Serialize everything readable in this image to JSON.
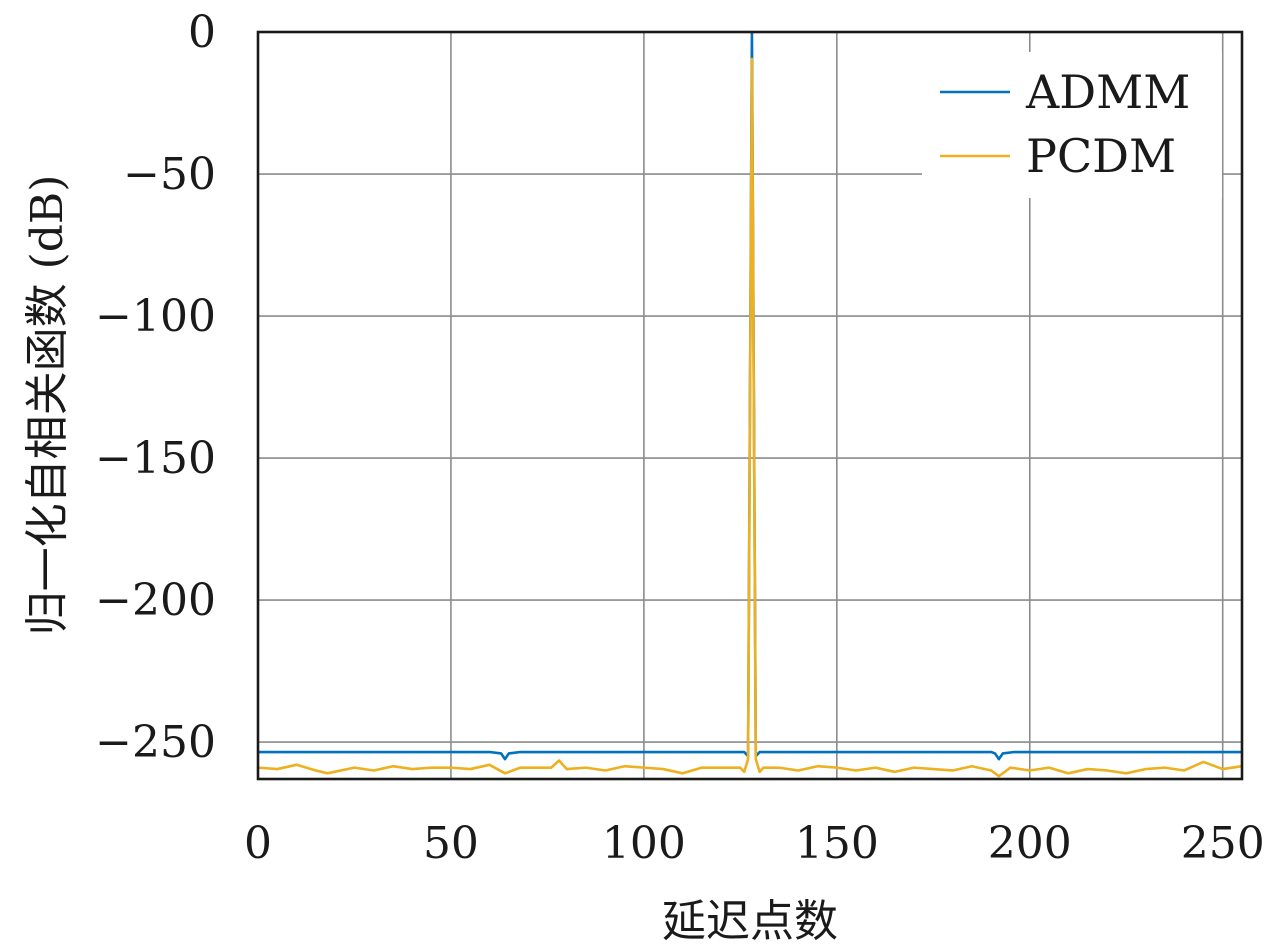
{
  "chart_data": {
    "type": "line",
    "xlabel": "延迟点数",
    "ylabel": "归一化自相关函数 (dB)",
    "xlim": [
      0,
      255
    ],
    "ylim": [
      -263,
      0
    ],
    "x_ticks": [
      0,
      50,
      100,
      150,
      200,
      250
    ],
    "y_ticks": [
      0,
      -50,
      -100,
      -150,
      -200,
      -250
    ],
    "x_tick_labels": [
      "0",
      "50",
      "100",
      "150",
      "200",
      "250"
    ],
    "y_tick_labels": [
      "0",
      "−50",
      "−100",
      "−150",
      "−200",
      "−250"
    ],
    "grid": true,
    "legend_position": "top-right",
    "series": [
      {
        "name": "ADMM",
        "color": "#0072bd",
        "points": [
          [
            0,
            -253.5
          ],
          [
            20,
            -253.5
          ],
          [
            40,
            -253.5
          ],
          [
            60,
            -253.5
          ],
          [
            63,
            -254
          ],
          [
            64,
            -256
          ],
          [
            65,
            -254
          ],
          [
            68,
            -253.5
          ],
          [
            90,
            -253.5
          ],
          [
            110,
            -253.5
          ],
          [
            125,
            -253.5
          ],
          [
            126,
            -253.5
          ],
          [
            127,
            -255
          ],
          [
            128,
            0
          ],
          [
            129,
            -255
          ],
          [
            130,
            -253.5
          ],
          [
            131,
            -253.5
          ],
          [
            150,
            -253.5
          ],
          [
            170,
            -253.5
          ],
          [
            190,
            -253.5
          ],
          [
            191,
            -254
          ],
          [
            192,
            -256
          ],
          [
            193,
            -254
          ],
          [
            196,
            -253.5
          ],
          [
            220,
            -253.5
          ],
          [
            240,
            -253.5
          ],
          [
            255,
            -253.5
          ]
        ]
      },
      {
        "name": "PCDM",
        "color": "#edb120",
        "points": [
          [
            0,
            -259
          ],
          [
            5,
            -259.5
          ],
          [
            10,
            -258
          ],
          [
            15,
            -260
          ],
          [
            18,
            -261
          ],
          [
            25,
            -259
          ],
          [
            30,
            -260
          ],
          [
            35,
            -258.5
          ],
          [
            40,
            -259.5
          ],
          [
            45,
            -259
          ],
          [
            50,
            -259
          ],
          [
            55,
            -259.5
          ],
          [
            60,
            -258
          ],
          [
            64,
            -261
          ],
          [
            68,
            -259
          ],
          [
            72,
            -259
          ],
          [
            76,
            -259
          ],
          [
            78,
            -256.5
          ],
          [
            80,
            -259.5
          ],
          [
            85,
            -259
          ],
          [
            90,
            -260
          ],
          [
            95,
            -258.5
          ],
          [
            100,
            -259
          ],
          [
            105,
            -259.5
          ],
          [
            110,
            -261
          ],
          [
            115,
            -259
          ],
          [
            120,
            -259
          ],
          [
            125,
            -259
          ],
          [
            126,
            -260.5
          ],
          [
            127,
            -256
          ],
          [
            128,
            -9.5
          ],
          [
            129,
            -256
          ],
          [
            130,
            -260.5
          ],
          [
            131,
            -259
          ],
          [
            135,
            -259
          ],
          [
            140,
            -260
          ],
          [
            145,
            -258.5
          ],
          [
            150,
            -259
          ],
          [
            155,
            -260
          ],
          [
            160,
            -259
          ],
          [
            165,
            -260.5
          ],
          [
            170,
            -259
          ],
          [
            175,
            -259.5
          ],
          [
            180,
            -260
          ],
          [
            185,
            -258.5
          ],
          [
            190,
            -260
          ],
          [
            192,
            -262
          ],
          [
            195,
            -259
          ],
          [
            200,
            -260
          ],
          [
            205,
            -259
          ],
          [
            210,
            -261
          ],
          [
            215,
            -259.5
          ],
          [
            220,
            -260
          ],
          [
            225,
            -261
          ],
          [
            230,
            -259.5
          ],
          [
            235,
            -259
          ],
          [
            240,
            -260
          ],
          [
            245,
            -257
          ],
          [
            250,
            -259.5
          ],
          [
            255,
            -258.5
          ]
        ]
      }
    ]
  }
}
